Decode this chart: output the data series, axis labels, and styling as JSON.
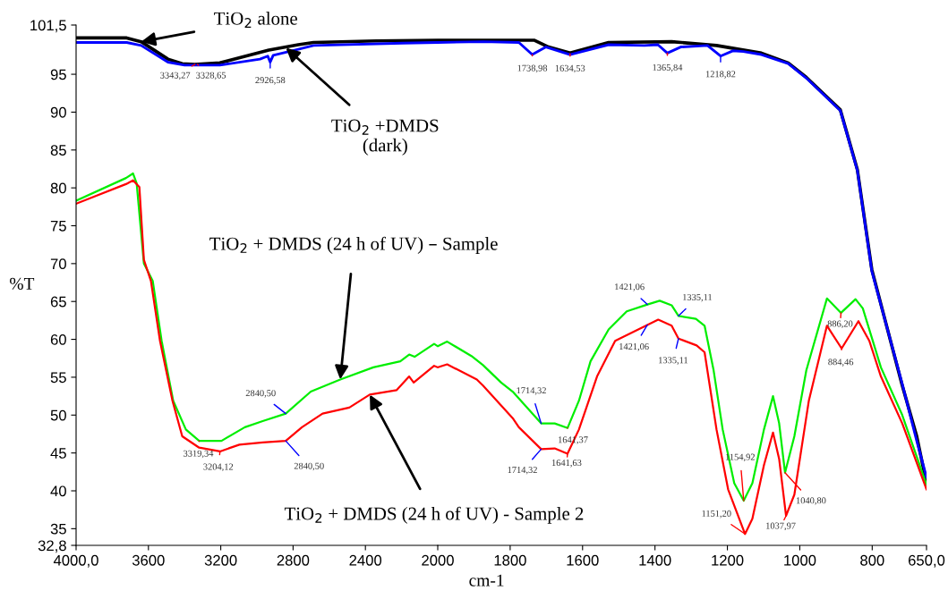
{
  "chart_data": [
    {
      "type": "line",
      "ylabel": "%T",
      "xlim": [
        4000,
        2000
      ],
      "xticks": [
        {
          "value": 4000,
          "label": "4000,0"
        },
        3600,
        3200,
        2800,
        2400,
        2000
      ],
      "ylim": [
        32.8,
        101.5
      ],
      "yticks": [
        {
          "value": 32.8,
          "label": "32,8"
        },
        35,
        40,
        45,
        50,
        55,
        60,
        65,
        70,
        75,
        80,
        85,
        90,
        95,
        {
          "value": 101.5,
          "label": "101,5"
        }
      ],
      "grid": false,
      "marker": "none",
      "line_style": "solid",
      "series": [
        {
          "color": "#000000",
          "x": [
            4000,
            3720,
            3640,
            3492,
            3413,
            3344,
            3205,
            2934,
            2771,
            2687,
            2341,
            2000
          ],
          "values": [
            99.8,
            99.8,
            99.3,
            97.0,
            96.4,
            96.3,
            96.5,
            98.2,
            98.9,
            99.2,
            99.4,
            99.5
          ]
        },
        {
          "color": "#0000ff",
          "x": [
            4000,
            3720,
            3640,
            3492,
            3400,
            3330,
            3205,
            2983,
            2940,
            2926.58,
            2910,
            2771,
            2687,
            2193,
            2000
          ],
          "values": [
            99.2,
            99.2,
            98.8,
            96.6,
            96.2,
            96.2,
            96.2,
            97.0,
            97.4,
            96.6,
            97.5,
            98.3,
            98.8,
            99.1,
            99.2
          ]
        },
        {
          "color": "#00ee00",
          "x": [
            4000,
            3724,
            3685,
            3665,
            3625,
            3576,
            3527,
            3463,
            3393,
            3319.34,
            3196,
            3067,
            2968,
            2840.5,
            2702,
            2539,
            2356,
            2207,
            2158,
            2128,
            2020,
            2000
          ],
          "values": [
            78.3,
            81.3,
            81.9,
            80.6,
            70.0,
            67.7,
            59.8,
            51.9,
            48.1,
            46.6,
            46.6,
            48.4,
            49.2,
            50.2,
            53.1,
            54.7,
            56.3,
            57.1,
            58.0,
            57.7,
            59.4,
            59.1
          ]
        },
        {
          "color": "#ff0000",
          "x": [
            4000,
            3724,
            3685,
            3650,
            3625,
            3586,
            3536,
            3467,
            3413,
            3319.34,
            3204.12,
            3097,
            2968,
            2840.5,
            2751,
            2637,
            2489,
            2376,
            2227,
            2158,
            2133,
            2020,
            2000
          ],
          "values": [
            77.9,
            80.5,
            81.0,
            80.1,
            70.5,
            67.7,
            59.8,
            51.9,
            47.2,
            45.7,
            45.2,
            46.1,
            46.4,
            46.6,
            48.4,
            50.2,
            51.0,
            52.7,
            53.3,
            55.1,
            54.3,
            56.5,
            56.3
          ]
        }
      ],
      "annotations": [
        {
          "text": "TiO$_{2}$ alone",
          "x": 3640,
          "y": 99.3
        },
        {
          "text": "TiO$_{2}$ +DMDS\n(dark)",
          "x": 2840,
          "y": 98.5
        },
        {
          "text": "TiO$_{2}$ + DMDS (24 h of UV) – Sample",
          "x": 2539,
          "y": 54.7
        },
        {
          "text": "TiO$_{2}$ + DMDS (24 h of UV) - Sample 2",
          "x": 2376,
          "y": 52.7
        },
        {
          "text": "3343,27",
          "x": 3343.27,
          "y": 96.3
        },
        {
          "text": "3328,65",
          "x": 3328.65,
          "y": 96.3
        },
        {
          "text": "2926,58",
          "x": 2926.58,
          "y": 96.6
        },
        {
          "text": "3319,34",
          "x": 3319.34,
          "y": 46.6
        },
        {
          "text": "3204,12",
          "x": 3204.12,
          "y": 45.2
        },
        {
          "text": "2840,50",
          "x": 2840.5,
          "y": 50.2
        },
        {
          "text": "2840,50",
          "x": 2840.5,
          "y": 46.6
        }
      ]
    },
    {
      "type": "line",
      "xlabel": "cm-1",
      "tick_labels": "x",
      "xlim": [
        2000,
        650
      ],
      "xticks": [
        1800,
        1600,
        1400,
        1200,
        1000,
        800,
        {
          "value": 650,
          "label": "650,0"
        }
      ],
      "ylim": [
        32.8,
        101.5
      ],
      "grid": false,
      "marker": "none",
      "line_style": "solid",
      "series": [
        {
          "color": "#000000",
          "x": [
            2000,
            1925,
            1734,
            1694,
            1634.53,
            1528,
            1354,
            1230,
            1106,
            1032,
            982,
            888,
            841,
            801,
            717,
            677,
            650
          ],
          "values": [
            99.5,
            99.5,
            99.5,
            98.6,
            97.8,
            99.2,
            99.3,
            98.8,
            97.8,
            96.5,
            94.6,
            90.3,
            82.4,
            69.2,
            53.9,
            47.2,
            41.0
          ]
        },
        {
          "color": "#0000ff",
          "x": [
            2000,
            1875,
            1776,
            1738.98,
            1701,
            1634.53,
            1528,
            1429,
            1392,
            1365.84,
            1329,
            1255,
            1218.82,
            1185,
            1156,
            1106,
            1032,
            982,
            888,
            841,
            801,
            717,
            677,
            650
          ],
          "values": [
            99.2,
            99.3,
            99.2,
            97.6,
            98.6,
            97.6,
            98.9,
            98.8,
            98.9,
            97.8,
            98.6,
            98.8,
            97.4,
            98.1,
            98.0,
            97.6,
            96.4,
            94.5,
            90.2,
            82.3,
            69.0,
            54.1,
            46.6,
            41.8
          ]
        },
        {
          "color": "#00ee00",
          "x": [
            2000,
            1974,
            1907,
            1875,
            1825,
            1793,
            1714.32,
            1677,
            1641.37,
            1610,
            1578,
            1528,
            1478,
            1421.06,
            1387,
            1354,
            1335.11,
            1287,
            1263,
            1238,
            1213,
            1181,
            1154.92,
            1131,
            1099,
            1074,
            1057,
            1040.8,
            1015,
            982,
            925,
            886.2,
            846,
            826,
            776,
            717,
            650
          ],
          "values": [
            59.1,
            59.7,
            57.8,
            56.6,
            54.3,
            53.1,
            48.9,
            48.9,
            48.3,
            51.9,
            57.1,
            61.3,
            63.7,
            64.6,
            65.1,
            64.5,
            63.1,
            62.7,
            61.8,
            55.9,
            48.1,
            41.0,
            38.7,
            41.0,
            48.1,
            52.5,
            48.9,
            42.4,
            47.2,
            55.9,
            65.4,
            63.5,
            65.3,
            64.1,
            56.3,
            50.0,
            40.8
          ]
        },
        {
          "color": "#ff0000",
          "x": [
            2000,
            1974,
            1892,
            1875,
            1793,
            1776,
            1714.32,
            1677,
            1641.63,
            1610,
            1560,
            1510,
            1421.06,
            1391,
            1354,
            1335.11,
            1285,
            1263,
            1230,
            1198,
            1151.2,
            1131,
            1099,
            1074,
            1057,
            1037.97,
            1015,
            975,
            925,
            884.46,
            838,
            808,
            776,
            717,
            650
          ],
          "values": [
            56.3,
            56.7,
            54.7,
            53.9,
            49.6,
            48.4,
            45.5,
            45.6,
            44.9,
            48.1,
            55.1,
            59.8,
            61.9,
            62.6,
            61.8,
            60.1,
            59.2,
            58.3,
            48.1,
            40.2,
            34.3,
            36.3,
            43.4,
            47.7,
            44.2,
            36.7,
            39.5,
            51.9,
            61.8,
            58.8,
            62.4,
            59.8,
            55.1,
            48.9,
            40.2
          ]
        }
      ],
      "annotations": [
        {
          "text": "1738,98",
          "x": 1738.98,
          "y": 97.6
        },
        {
          "text": "1634,53",
          "x": 1634.53,
          "y": 97.7
        },
        {
          "text": "1365,84",
          "x": 1365.84,
          "y": 97.8
        },
        {
          "text": "1218,82",
          "x": 1218.82,
          "y": 97.4
        },
        {
          "text": "1714,32",
          "x": 1714.32,
          "y": 48.9
        },
        {
          "text": "1641,37",
          "x": 1641.37,
          "y": 48.3
        },
        {
          "text": "1714,32",
          "x": 1714.32,
          "y": 45.5
        },
        {
          "text": "1641,63",
          "x": 1641.63,
          "y": 44.9
        },
        {
          "text": "1421,06",
          "x": 1421.06,
          "y": 64.6
        },
        {
          "text": "1335,11",
          "x": 1335.11,
          "y": 63.1
        },
        {
          "text": "1421,06",
          "x": 1421.06,
          "y": 61.9
        },
        {
          "text": "1335,11",
          "x": 1335.11,
          "y": 60.1
        },
        {
          "text": "886,20",
          "x": 886.2,
          "y": 63.5
        },
        {
          "text": "884,46",
          "x": 884.46,
          "y": 58.8
        },
        {
          "text": "1154,92",
          "x": 1154.92,
          "y": 38.7
        },
        {
          "text": "1151,20",
          "x": 1151.2,
          "y": 34.3
        },
        {
          "text": "1040,80",
          "x": 1040.8,
          "y": 42.4
        },
        {
          "text": "1037,97",
          "x": 1037.97,
          "y": 36.7
        }
      ]
    }
  ]
}
